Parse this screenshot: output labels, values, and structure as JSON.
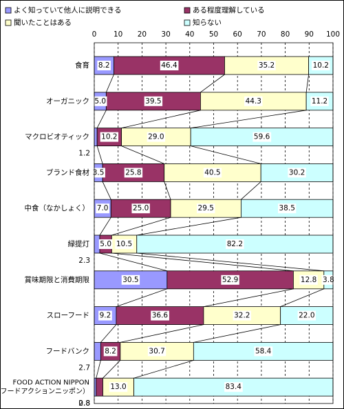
{
  "chart_data": {
    "type": "stacked-bar-horizontal",
    "categories": [
      "食育",
      "オーガニック",
      "マクロビオティック",
      "ブランド食材",
      "中食（なかしょく）",
      "緑提灯",
      "賞味期限と消費期限",
      "スローフード",
      "フードバンク",
      [
        "FOOD ACTION NIPPON",
        "（フードアクションニッポン）"
      ]
    ],
    "series": [
      {
        "name": "よく知っていて他人に説明できる",
        "color": "#9999ff",
        "values": [
          8.2,
          5.0,
          1.2,
          3.5,
          7.0,
          2.3,
          30.5,
          9.2,
          2.7,
          0.8
        ],
        "value_labels": [
          "8.2",
          "5.0",
          "1.2",
          "3.5",
          "7.0",
          "2.3",
          "30.5",
          "9.2",
          "2.7",
          "0.8"
        ]
      },
      {
        "name": "ある程度理解している",
        "color": "#993366",
        "values": [
          46.4,
          39.5,
          10.2,
          25.8,
          25.0,
          5.0,
          52.9,
          36.6,
          8.2,
          2.8
        ],
        "value_labels": [
          "46.4",
          "39.5",
          "10.2",
          "25.8",
          "25.0",
          "5.0",
          "52.9",
          "36.6",
          "8.2",
          "2.8"
        ]
      },
      {
        "name": "聞いたことはある",
        "color": "#ffffcc",
        "values": [
          35.2,
          44.3,
          29.0,
          40.5,
          29.5,
          10.5,
          12.8,
          32.2,
          30.7,
          13.0
        ],
        "value_labels": [
          "35.2",
          "44.3",
          "29.0",
          "40.5",
          "29.5",
          "10.5",
          "12.8",
          "32.2",
          "30.7",
          "13.0"
        ]
      },
      {
        "name": "知らない",
        "color": "#ccffff",
        "values": [
          10.2,
          11.2,
          59.6,
          30.2,
          38.5,
          82.2,
          3.8,
          22.0,
          58.4,
          83.4
        ],
        "value_labels": [
          "10.2",
          "11.2",
          "59.6",
          "30.2",
          "38.5",
          "82.2",
          "3.8",
          "22.0",
          "58.4",
          "83.4"
        ]
      }
    ],
    "xlim": [
      0,
      100
    ],
    "xticks": [
      0,
      10,
      20,
      30,
      40,
      50,
      60,
      70,
      80,
      90,
      100
    ],
    "grid": true
  }
}
